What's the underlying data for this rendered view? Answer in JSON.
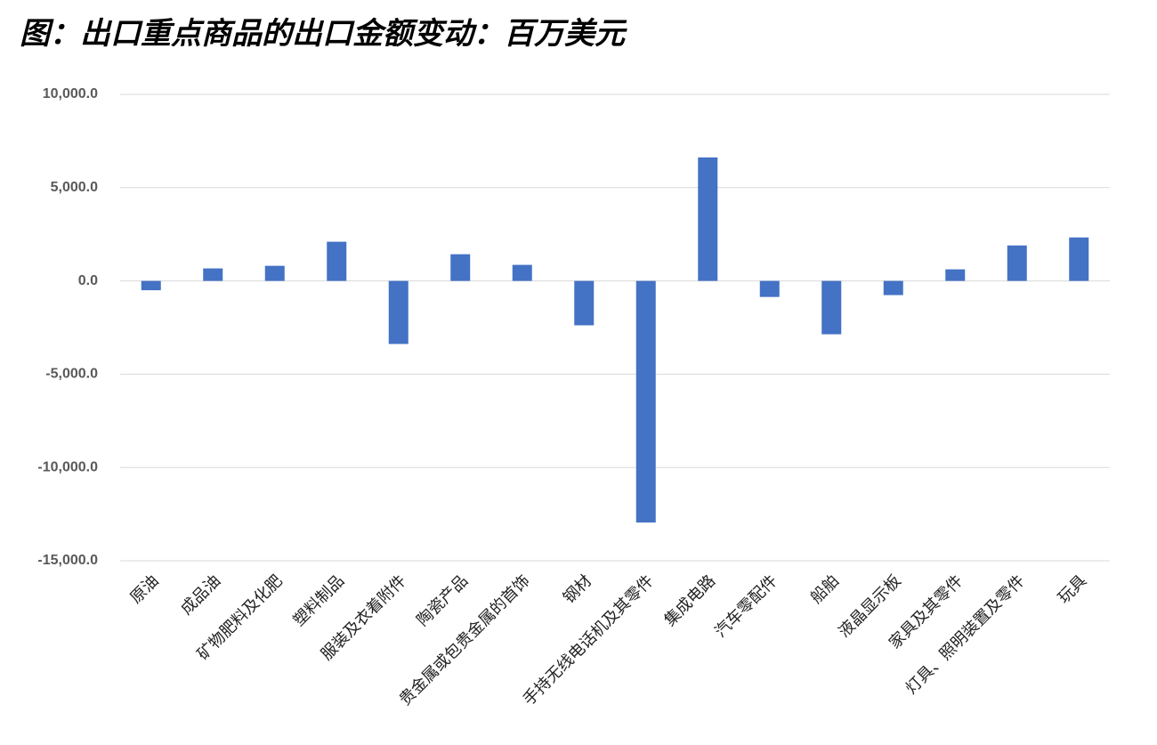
{
  "chart_data": {
    "type": "bar",
    "title": "图：出口重点商品的出口金额变动：百万美元",
    "categories": [
      "原油",
      "成品油",
      "矿物肥料及化肥",
      "塑料制品",
      "服装及衣着附件",
      "陶瓷产品",
      "贵金属或包贵金属的首饰",
      "钢材",
      "手持无线电话机及其零件",
      "集成电路",
      "汽车零配件",
      "船舶",
      "液晶显示板",
      "家具及其零件",
      "灯具、照明装置及零件",
      "玩具"
    ],
    "values": [
      -500,
      670,
      810,
      2100,
      -3380,
      1430,
      860,
      -2380,
      -12950,
      6620,
      -860,
      -2860,
      -760,
      620,
      1900,
      2330
    ],
    "color": "#4472c4",
    "ylim": [
      -15000,
      10000
    ],
    "yticks": [
      {
        "value": -15000,
        "label": "-15,000.0"
      },
      {
        "value": -10000,
        "label": "-10,000.0"
      },
      {
        "value": -5000,
        "label": "-5,000.0"
      },
      {
        "value": 0,
        "label": "0.0"
      },
      {
        "value": 5000,
        "label": "5,000.0"
      },
      {
        "value": 10000,
        "label": "10,000.0"
      }
    ],
    "grid": true
  }
}
